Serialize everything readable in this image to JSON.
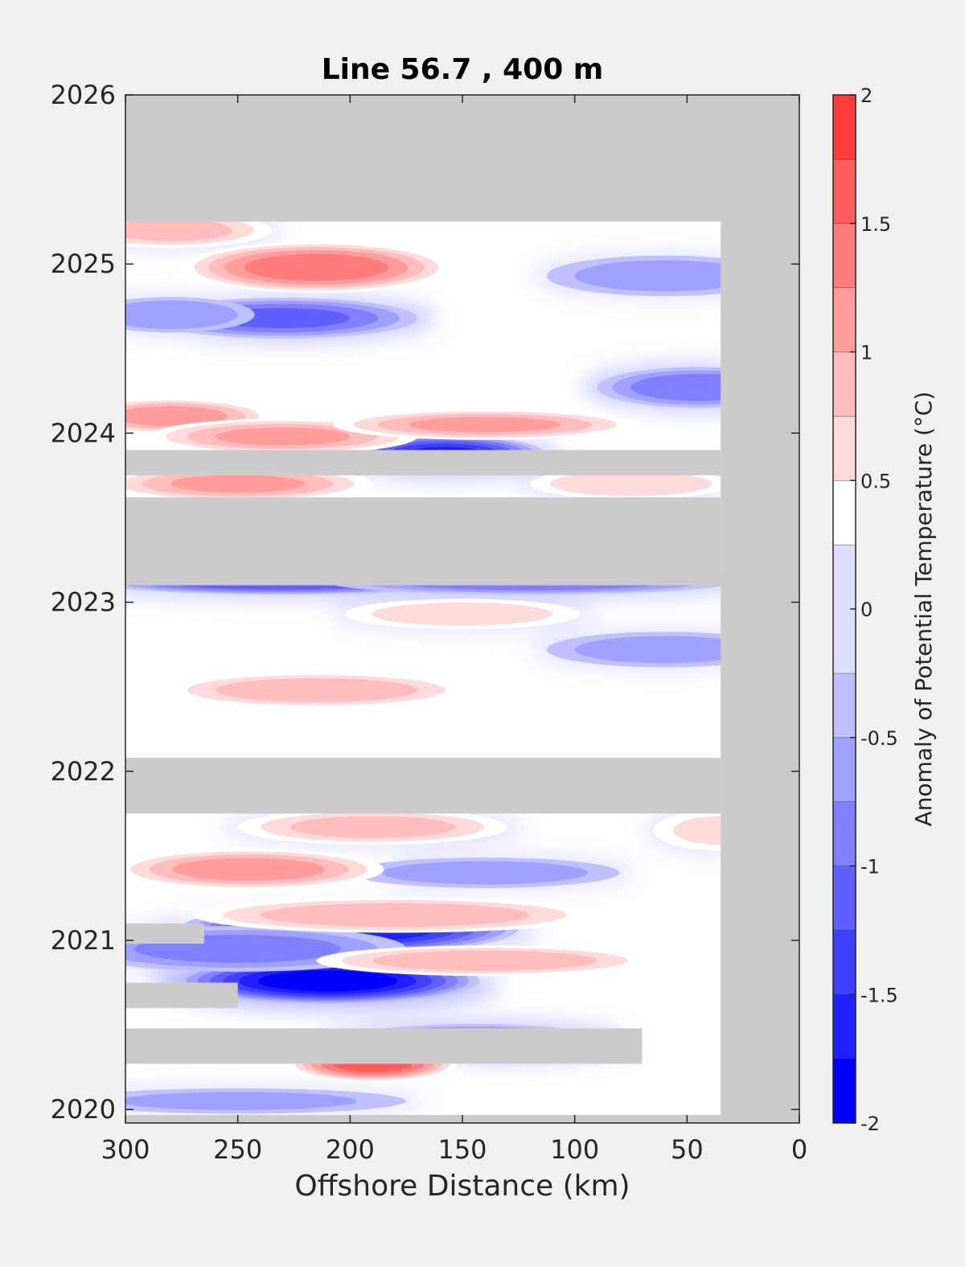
{
  "chart_data": {
    "type": "heatmap",
    "subtype": "filled-contour section (time vs. offshore distance)",
    "title": "Line 56.7 , 400 m",
    "xlabel": "Offshore Distance (km)",
    "ylabel": "",
    "xlim": [
      300,
      0
    ],
    "x_reversed": true,
    "ylim": [
      2019.92,
      2026
    ],
    "x_ticks": [
      "300",
      "250",
      "200",
      "150",
      "100",
      "50",
      "0"
    ],
    "y_ticks": [
      "2020",
      "2021",
      "2022",
      "2023",
      "2024",
      "2025",
      "2026"
    ],
    "grid": false,
    "no_data_color": "#cbcbcb",
    "colorbar": {
      "label": "Anomaly of Potential Temperature (°C)",
      "limits": [
        -2,
        2
      ],
      "tick_labels": [
        "2",
        "1.5",
        "1",
        "0.5",
        "0",
        "-0.5",
        "-1",
        "-1.5",
        "-2"
      ],
      "levels": [
        -2,
        -1.75,
        -1.5,
        -1.25,
        -1,
        -0.75,
        -0.5,
        -0.25,
        0.25,
        0.5,
        0.75,
        1,
        1.25,
        1.5,
        1.75,
        2
      ],
      "colors_low_to_high": [
        "#0000ff",
        "#2020ff",
        "#4040ff",
        "#6060ff",
        "#8080ff",
        "#a0a0ff",
        "#c0c0ff",
        "#dedeff",
        "#ffffff",
        "#ffdada",
        "#ffbcbc",
        "#ff9c9c",
        "#ff7c7c",
        "#ff5c5c",
        "#ff3c3c",
        "#ff0000"
      ]
    },
    "data_coverage": {
      "nearshore_gap_km": [
        0,
        35
      ],
      "no_data_time_bands": [
        {
          "from": 2025.25,
          "to": 2026.0,
          "x_km": [
            300,
            0
          ]
        },
        {
          "from": 2023.1,
          "to": 2023.62,
          "x_km": [
            300,
            35
          ]
        },
        {
          "from": 2023.75,
          "to": 2023.9,
          "x_km": [
            300,
            35
          ]
        },
        {
          "from": 2021.75,
          "to": 2022.08,
          "x_km": [
            300,
            35
          ]
        },
        {
          "from": 2020.27,
          "to": 2020.48,
          "x_km": [
            300,
            70
          ]
        },
        {
          "from": 2020.6,
          "to": 2020.75,
          "x_km": [
            300,
            250
          ]
        },
        {
          "from": 2020.98,
          "to": 2021.1,
          "x_km": [
            300,
            265
          ]
        }
      ]
    },
    "anomaly_features": [
      {
        "x_km": 200,
        "t": 2021.07,
        "value": -1.7,
        "sx_km": 50,
        "st": 0.1
      },
      {
        "x_km": 210,
        "t": 2020.76,
        "value": -1.9,
        "sx_km": 45,
        "st": 0.09
      },
      {
        "x_km": 158,
        "t": 2023.87,
        "value": -1.5,
        "sx_km": 30,
        "st": 0.08
      },
      {
        "x_km": 230,
        "t": 2023.12,
        "value": -1.2,
        "sx_km": 55,
        "st": 0.05
      },
      {
        "x_km": 120,
        "t": 2023.12,
        "value": -0.9,
        "sx_km": 60,
        "st": 0.05
      },
      {
        "x_km": 230,
        "t": 2024.68,
        "value": -1.0,
        "sx_km": 40,
        "st": 0.08
      },
      {
        "x_km": 280,
        "t": 2024.7,
        "value": -0.7,
        "sx_km": 25,
        "st": 0.07
      },
      {
        "x_km": 45,
        "t": 2024.27,
        "value": -0.9,
        "sx_km": 30,
        "st": 0.08
      },
      {
        "x_km": 60,
        "t": 2024.93,
        "value": -0.6,
        "sx_km": 35,
        "st": 0.08
      },
      {
        "x_km": 145,
        "t": 2020.4,
        "value": -1.0,
        "sx_km": 40,
        "st": 0.07
      },
      {
        "x_km": 250,
        "t": 2020.95,
        "value": -0.8,
        "sx_km": 50,
        "st": 0.09
      },
      {
        "x_km": 60,
        "t": 2022.72,
        "value": -0.6,
        "sx_km": 35,
        "st": 0.07
      },
      {
        "x_km": 140,
        "t": 2021.4,
        "value": -0.6,
        "sx_km": 40,
        "st": 0.06
      },
      {
        "x_km": 250,
        "t": 2020.05,
        "value": -0.5,
        "sx_km": 50,
        "st": 0.05
      },
      {
        "x_km": 215,
        "t": 2024.98,
        "value": 1.4,
        "sx_km": 40,
        "st": 0.1
      },
      {
        "x_km": 280,
        "t": 2024.1,
        "value": 1.1,
        "sx_km": 30,
        "st": 0.07
      },
      {
        "x_km": 230,
        "t": 2023.98,
        "value": 1.0,
        "sx_km": 40,
        "st": 0.07
      },
      {
        "x_km": 140,
        "t": 2024.05,
        "value": 1.0,
        "sx_km": 45,
        "st": 0.06
      },
      {
        "x_km": 250,
        "t": 2023.7,
        "value": 1.0,
        "sx_km": 40,
        "st": 0.07
      },
      {
        "x_km": 245,
        "t": 2021.42,
        "value": 1.1,
        "sx_km": 40,
        "st": 0.08
      },
      {
        "x_km": 215,
        "t": 2022.48,
        "value": 0.9,
        "sx_km": 45,
        "st": 0.07
      },
      {
        "x_km": 190,
        "t": 2020.27,
        "value": 1.6,
        "sx_km": 25,
        "st": 0.07
      },
      {
        "x_km": 180,
        "t": 2021.15,
        "value": 0.9,
        "sx_km": 60,
        "st": 0.07
      },
      {
        "x_km": 140,
        "t": 2020.88,
        "value": 0.9,
        "sx_km": 50,
        "st": 0.06
      },
      {
        "x_km": 190,
        "t": 2021.67,
        "value": 0.8,
        "sx_km": 40,
        "st": 0.07
      },
      {
        "x_km": 150,
        "t": 2022.93,
        "value": 0.6,
        "sx_km": 35,
        "st": 0.06
      },
      {
        "x_km": 280,
        "t": 2025.2,
        "value": 0.8,
        "sx_km": 30,
        "st": 0.07
      },
      {
        "x_km": 75,
        "t": 2023.7,
        "value": 0.7,
        "sx_km": 30,
        "st": 0.06
      },
      {
        "x_km": 35,
        "t": 2021.65,
        "value": 0.5,
        "sx_km": 20,
        "st": 0.08
      }
    ]
  }
}
